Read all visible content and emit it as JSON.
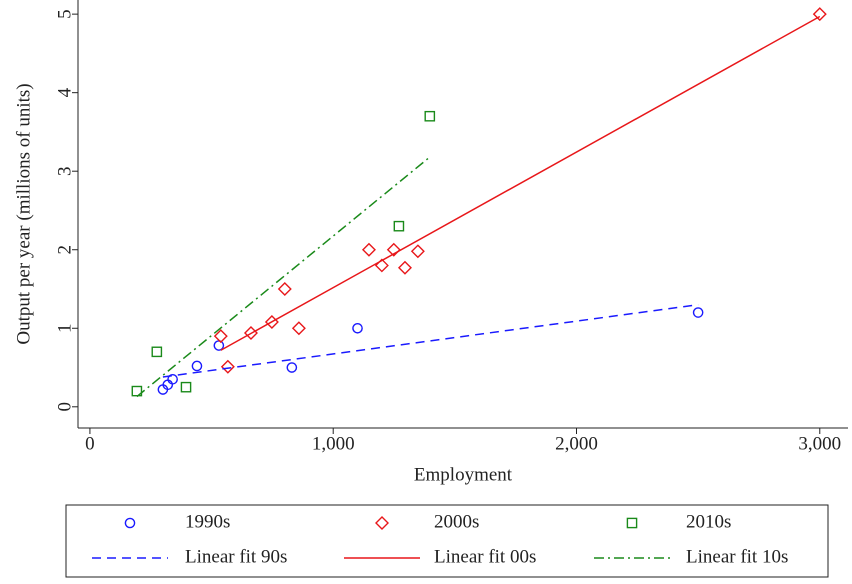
{
  "chart_data": {
    "type": "scatter",
    "x_label": "Employment",
    "y_label": "Output per year (millions of units)",
    "xlim": [
      -49,
      3116
    ],
    "ylim": [
      -0.27,
      5.18
    ],
    "xticks": [
      0,
      {
        "value": 1000,
        "label": "1,000"
      },
      {
        "value": 2000,
        "label": "2,000"
      },
      {
        "value": 3000,
        "label": "3,000"
      }
    ],
    "yticks": [
      0,
      1,
      2,
      3,
      4,
      5
    ],
    "series": [
      {
        "name": "1990s",
        "color": "#1a1aff",
        "marker": "circle",
        "x": [
          300,
          320,
          340,
          440,
          530,
          830,
          1100,
          2500
        ],
        "values": [
          0.22,
          0.28,
          0.35,
          0.52,
          0.78,
          0.5,
          1.0,
          1.2
        ]
      },
      {
        "name": "2000s",
        "color": "#e8171a",
        "marker": "diamond",
        "x": [
          538,
          567,
          662,
          748,
          801,
          859,
          1147,
          1200,
          1249,
          1295,
          1348,
          3000
        ],
        "values": [
          0.9,
          0.51,
          0.94,
          1.08,
          1.5,
          1.0,
          2.0,
          1.8,
          2.0,
          1.77,
          1.98,
          5.0
        ]
      },
      {
        "name": "2010s",
        "color": "#1a8a1a",
        "marker": "square",
        "x": [
          193,
          275,
          395,
          1270,
          1397
        ],
        "values": [
          0.2,
          0.7,
          0.25,
          2.3,
          3.7
        ]
      },
      {
        "name": "Linear fit 90s",
        "color": "#1a1aff",
        "line": "dash",
        "x": [
          300,
          2500
        ],
        "values": [
          0.38,
          1.3
        ]
      },
      {
        "name": "Linear fit 00s",
        "color": "#e8171a",
        "line": "solid",
        "x": [
          538,
          3000
        ],
        "values": [
          0.72,
          4.97
        ]
      },
      {
        "name": "Linear fit 10s",
        "color": "#1a8a1a",
        "line": "dashdot",
        "x": [
          193,
          1397
        ],
        "values": [
          0.13,
          3.18
        ]
      }
    ]
  }
}
